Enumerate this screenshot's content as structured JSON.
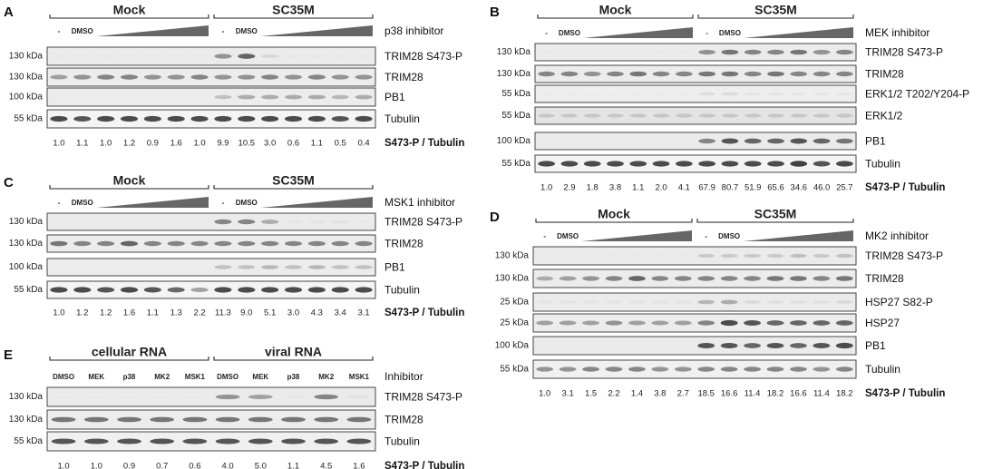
{
  "panels": [
    {
      "letter": "A",
      "groups": [
        "Mock",
        "SC35M"
      ],
      "lanes": [
        [
          "-",
          "DMSO"
        ],
        [
          "-",
          "DMSO"
        ]
      ],
      "treatment": "p38 inhibitor",
      "blots": [
        {
          "mw": "130 kDa",
          "label": "TRIM28 S473-P",
          "bands": [
            0.05,
            0.04,
            0.05,
            0.04,
            0.05,
            0.04,
            0.05,
            0.55,
            0.7,
            0.22,
            0.06,
            0.06,
            0.05,
            0.05
          ],
          "bg": "#ebebeb"
        },
        {
          "mw": "130 kDa",
          "label": "TRIM28",
          "bands": [
            0.5,
            0.55,
            0.6,
            0.6,
            0.55,
            0.55,
            0.6,
            0.55,
            0.55,
            0.6,
            0.55,
            0.6,
            0.55,
            0.55
          ],
          "bg": "#ececec"
        },
        {
          "mw": "100 kDa",
          "label": "PB1",
          "bands": [
            0.03,
            0.03,
            0.03,
            0.03,
            0.03,
            0.03,
            0.03,
            0.35,
            0.45,
            0.45,
            0.45,
            0.45,
            0.4,
            0.45
          ],
          "bg": "#ececec"
        },
        {
          "mw": "55 kDa",
          "label": "Tubulin",
          "bands": [
            0.8,
            0.75,
            0.8,
            0.8,
            0.8,
            0.8,
            0.8,
            0.8,
            0.8,
            0.8,
            0.8,
            0.8,
            0.75,
            0.8
          ],
          "bg": "#f4f4f4"
        }
      ],
      "ratio_label": "S473-P / Tubulin",
      "ratios": [
        "1.0",
        "1.1",
        "1.0",
        "1.2",
        "0.9",
        "1.6",
        "1.0",
        "9.9",
        "10.5",
        "3.0",
        "0.6",
        "1.1",
        "0.5",
        "0.4"
      ]
    },
    {
      "letter": "B",
      "groups": [
        "Mock",
        "SC35M"
      ],
      "lanes": [
        [
          "-",
          "DMSO"
        ],
        [
          "-",
          "DMSO"
        ]
      ],
      "treatment": "MEK inhibitor",
      "blots": [
        {
          "mw": "130 kDa",
          "label": "TRIM28 S473-P",
          "bands": [
            0.04,
            0.04,
            0.04,
            0.04,
            0.04,
            0.04,
            0.04,
            0.55,
            0.65,
            0.6,
            0.6,
            0.65,
            0.55,
            0.6
          ],
          "bg": "#ebebeb"
        },
        {
          "mw": "130 kDa",
          "label": "TRIM28",
          "bands": [
            0.6,
            0.6,
            0.55,
            0.6,
            0.65,
            0.6,
            0.6,
            0.65,
            0.65,
            0.6,
            0.65,
            0.6,
            0.6,
            0.6
          ],
          "bg": "#ececec"
        },
        {
          "mw": "55 kDa",
          "label": "ERK1/2 T202/Y204-P",
          "bands": [
            0.04,
            0.04,
            0.04,
            0.04,
            0.04,
            0.04,
            0.04,
            0.18,
            0.2,
            0.12,
            0.12,
            0.1,
            0.1,
            0.1
          ],
          "bg": "#eeeeee"
        },
        {
          "mw": "55 kDa",
          "label": "ERK1/2",
          "bands": [
            0.3,
            0.3,
            0.3,
            0.3,
            0.3,
            0.3,
            0.3,
            0.3,
            0.3,
            0.3,
            0.3,
            0.3,
            0.3,
            0.3
          ],
          "bg": "#e4e4e4"
        },
        {
          "mw": "100 kDa",
          "label": "PB1",
          "bands": [
            0.02,
            0.02,
            0.02,
            0.02,
            0.02,
            0.02,
            0.02,
            0.6,
            0.75,
            0.7,
            0.7,
            0.75,
            0.7,
            0.65
          ],
          "bg": "#ebebeb"
        },
        {
          "mw": "55 kDa",
          "label": "Tubulin",
          "bands": [
            0.8,
            0.8,
            0.8,
            0.8,
            0.8,
            0.8,
            0.8,
            0.8,
            0.8,
            0.8,
            0.8,
            0.85,
            0.75,
            0.8
          ],
          "bg": "#f4f4f4"
        }
      ],
      "ratio_label": "S473-P / Tubulin",
      "ratios": [
        "1.0",
        "2.9",
        "1.8",
        "3.8",
        "1.1",
        "2.0",
        "4.1",
        "67.9",
        "80.7",
        "51.9",
        "65.6",
        "34.6",
        "46.0",
        "25.7"
      ]
    },
    {
      "letter": "C",
      "groups": [
        "Mock",
        "SC35M"
      ],
      "lanes": [
        [
          "-",
          "DMSO"
        ],
        [
          "-",
          "DMSO"
        ]
      ],
      "treatment": "MSK1 inhibitor",
      "blots": [
        {
          "mw": "130 kDa",
          "label": "TRIM28 S473-P",
          "bands": [
            0.03,
            0.03,
            0.03,
            0.03,
            0.03,
            0.03,
            0.03,
            0.6,
            0.6,
            0.45,
            0.08,
            0.1,
            0.12,
            0.05
          ],
          "bg": "#ebebeb"
        },
        {
          "mw": "130 kDa",
          "label": "TRIM28",
          "bands": [
            0.65,
            0.6,
            0.6,
            0.7,
            0.6,
            0.6,
            0.6,
            0.6,
            0.6,
            0.6,
            0.6,
            0.6,
            0.6,
            0.6
          ],
          "bg": "#ececec"
        },
        {
          "mw": "100 kDa",
          "label": "PB1",
          "bands": [
            0.03,
            0.03,
            0.03,
            0.03,
            0.03,
            0.03,
            0.03,
            0.35,
            0.35,
            0.4,
            0.35,
            0.4,
            0.35,
            0.35
          ],
          "bg": "#ececec"
        },
        {
          "mw": "55 kDa",
          "label": "Tubulin",
          "bands": [
            0.8,
            0.8,
            0.75,
            0.8,
            0.75,
            0.7,
            0.5,
            0.8,
            0.8,
            0.8,
            0.8,
            0.8,
            0.8,
            0.8
          ],
          "bg": "#f4f4f4"
        }
      ],
      "ratio_label": "S473-P / Tubulin",
      "ratios": [
        "1.0",
        "1.2",
        "1.2",
        "1.6",
        "1.1",
        "1.3",
        "2.2",
        "11.3",
        "9.0",
        "5.1",
        "3.0",
        "4.3",
        "3.4",
        "3.1"
      ]
    },
    {
      "letter": "D",
      "groups": [
        "Mock",
        "SC35M"
      ],
      "lanes": [
        [
          "-",
          "DMSO"
        ],
        [
          "-",
          "DMSO"
        ]
      ],
      "treatment": "MK2 inhibitor",
      "blots": [
        {
          "mw": "130 kDa",
          "label": "TRIM28 S473-P",
          "bands": [
            0.05,
            0.05,
            0.05,
            0.05,
            0.05,
            0.05,
            0.05,
            0.3,
            0.3,
            0.3,
            0.3,
            0.35,
            0.3,
            0.35
          ],
          "bg": "#ebebeb"
        },
        {
          "mw": "130 kDa",
          "label": "TRIM28",
          "bands": [
            0.45,
            0.5,
            0.55,
            0.6,
            0.7,
            0.6,
            0.6,
            0.6,
            0.6,
            0.6,
            0.65,
            0.65,
            0.6,
            0.65
          ],
          "bg": "#ececec"
        },
        {
          "mw": "25 kDa",
          "label": "HSP27 S82-P",
          "bands": [
            0.1,
            0.1,
            0.1,
            0.1,
            0.1,
            0.1,
            0.1,
            0.4,
            0.45,
            0.2,
            0.15,
            0.15,
            0.15,
            0.2
          ],
          "bg": "#ebebeb"
        },
        {
          "mw": "25 kDa",
          "label": "HSP27",
          "bands": [
            0.5,
            0.5,
            0.5,
            0.55,
            0.5,
            0.5,
            0.5,
            0.6,
            0.8,
            0.75,
            0.7,
            0.7,
            0.7,
            0.7
          ],
          "bg": "#ececec"
        },
        {
          "mw": "100 kDa",
          "label": "PB1",
          "bands": [
            0.02,
            0.02,
            0.02,
            0.02,
            0.02,
            0.02,
            0.02,
            0.75,
            0.75,
            0.7,
            0.75,
            0.7,
            0.75,
            0.8
          ],
          "bg": "#ebebeb"
        },
        {
          "mw": "55 kDa",
          "label": "Tubulin",
          "bands": [
            0.55,
            0.55,
            0.6,
            0.6,
            0.6,
            0.55,
            0.55,
            0.6,
            0.6,
            0.6,
            0.6,
            0.6,
            0.55,
            0.6
          ],
          "bg": "#f0f0f0"
        }
      ],
      "ratio_label": "S473-P / Tubulin",
      "ratios": [
        "1.0",
        "3.1",
        "1.5",
        "2.2",
        "1.4",
        "3.8",
        "2.7",
        "18.5",
        "16.6",
        "11.4",
        "18.2",
        "16.6",
        "11.4",
        "18.2"
      ]
    },
    {
      "letter": "E",
      "groups": [
        "cellular RNA",
        "viral RNA"
      ],
      "lanes": [
        [
          "DMSO",
          "MEK",
          "p38",
          "MK2",
          "MSK1"
        ],
        [
          "DMSO",
          "MEK",
          "p38",
          "MK2",
          "MSK1"
        ]
      ],
      "treatment": "Inhibitor",
      "blots": [
        {
          "mw": "130 kDa",
          "label": "TRIM28 S473-P",
          "bands": [
            0.03,
            0.03,
            0.03,
            0.03,
            0.03,
            0.55,
            0.5,
            0.06,
            0.6,
            0.12
          ],
          "bg": "#ebebeb"
        },
        {
          "mw": "130 kDa",
          "label": "TRIM28",
          "bands": [
            0.65,
            0.65,
            0.65,
            0.65,
            0.65,
            0.65,
            0.65,
            0.65,
            0.65,
            0.65
          ],
          "bg": "#ececec"
        },
        {
          "mw": "55 kDa",
          "label": "Tubulin",
          "bands": [
            0.75,
            0.75,
            0.75,
            0.75,
            0.75,
            0.75,
            0.75,
            0.75,
            0.75,
            0.75
          ],
          "bg": "#f0f0f0"
        }
      ],
      "ratio_label": "S473-P / Tubulin",
      "ratios": [
        "1.0",
        "1.0",
        "0.9",
        "0.7",
        "0.6",
        "4.0",
        "5.0",
        "1.1",
        "4.5",
        "1.6"
      ]
    }
  ]
}
